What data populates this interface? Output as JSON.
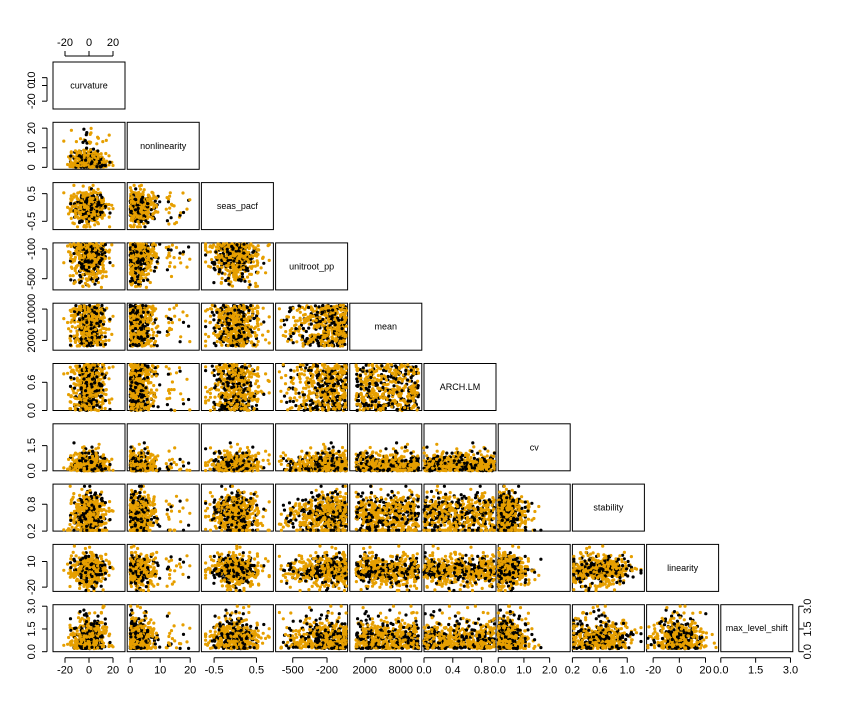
{
  "chart_data": {
    "type": "scatter",
    "subtype": "pairs-matrix-lower-triangle",
    "variables": [
      "curvature",
      "nonlinearity",
      "seas_pacf",
      "unitroot_pp",
      "mean",
      "ARCH.LM",
      "cv",
      "stability",
      "linearity",
      "max_level_shift"
    ],
    "series": [
      {
        "name": "",
        "color": "#000000"
      },
      {
        "name": "",
        "color": "#E69F00"
      }
    ],
    "ranges": [
      [
        -30,
        30
      ],
      [
        -1,
        23
      ],
      [
        -0.8,
        0.9
      ],
      [
        -650,
        -20
      ],
      [
        -500,
        11500
      ],
      [
        0,
        1
      ],
      [
        0,
        2.8
      ],
      [
        0.2,
        1.25
      ],
      [
        -25,
        30
      ],
      [
        0,
        3.1
      ]
    ],
    "top_axes": [
      {
        "var": 0,
        "ticks": [
          "-20",
          "0",
          "20"
        ],
        "values": [
          -20,
          0,
          20
        ]
      }
    ],
    "bottom_axes": [
      {
        "var": 0,
        "ticks": [
          "-20",
          "0",
          "20"
        ],
        "values": [
          -20,
          0,
          20
        ]
      },
      {
        "var": 1,
        "ticks": [
          "0",
          "10",
          "20"
        ],
        "values": [
          0,
          10,
          20
        ]
      },
      {
        "var": 2,
        "ticks": [
          "-0.5",
          "0.5"
        ],
        "values": [
          -0.5,
          0.5
        ]
      },
      {
        "var": 3,
        "ticks": [
          "-500",
          "-200"
        ],
        "values": [
          -500,
          -200
        ]
      },
      {
        "var": 4,
        "ticks": [
          "2000",
          "8000"
        ],
        "values": [
          2000,
          8000
        ]
      },
      {
        "var": 5,
        "ticks": [
          "0.0",
          "0.4",
          "0.8"
        ],
        "values": [
          0,
          0.4,
          0.8
        ]
      },
      {
        "var": 6,
        "ticks": [
          "0.0",
          "1.0",
          "2.0"
        ],
        "values": [
          0,
          1,
          2
        ]
      },
      {
        "var": 7,
        "ticks": [
          "0.2",
          "0.6",
          "1.0"
        ],
        "values": [
          0.2,
          0.6,
          1.0
        ]
      },
      {
        "var": 8,
        "ticks": [
          "-20",
          "0",
          "20"
        ],
        "values": [
          -20,
          0,
          20
        ]
      },
      {
        "var": 9,
        "ticks": [
          "0.0",
          "1.5",
          "3.0"
        ],
        "values": [
          0,
          1.5,
          3.0
        ]
      }
    ],
    "left_axes": [
      {
        "var": 0,
        "ticks": [
          "-20",
          "0",
          "10"
        ],
        "values": [
          -20,
          0,
          10
        ]
      },
      {
        "var": 1,
        "ticks": [
          "0",
          "10",
          "20"
        ],
        "values": [
          0,
          10,
          20
        ]
      },
      {
        "var": 2,
        "ticks": [
          "-0.5",
          "0.5"
        ],
        "values": [
          -0.5,
          0.5
        ]
      },
      {
        "var": 3,
        "ticks": [
          "-500",
          "-100"
        ],
        "values": [
          -500,
          -100
        ]
      },
      {
        "var": 4,
        "ticks": [
          "2000",
          "10000"
        ],
        "values": [
          2000,
          10000
        ]
      },
      {
        "var": 5,
        "ticks": [
          "0.0",
          "0.6"
        ],
        "values": [
          0,
          0.6
        ]
      },
      {
        "var": 6,
        "ticks": [
          "0.0",
          "1.5"
        ],
        "values": [
          0,
          1.5
        ]
      },
      {
        "var": 7,
        "ticks": [
          "0.2",
          "0.8"
        ],
        "values": [
          0.2,
          0.8
        ]
      },
      {
        "var": 8,
        "ticks": [
          "-20",
          "10"
        ],
        "values": [
          -20,
          10
        ]
      },
      {
        "var": 9,
        "ticks": [
          "0.0",
          "1.5",
          "3.0"
        ],
        "values": [
          0,
          1.5,
          3.0
        ]
      }
    ],
    "right_axes": [
      {
        "var": 9,
        "ticks": [
          "0.0",
          "1.5",
          "3.0"
        ],
        "values": [
          0,
          1.5,
          3.0
        ]
      }
    ],
    "grid": false,
    "legend": "none",
    "title": "",
    "point_symbol": "filled-circle"
  }
}
